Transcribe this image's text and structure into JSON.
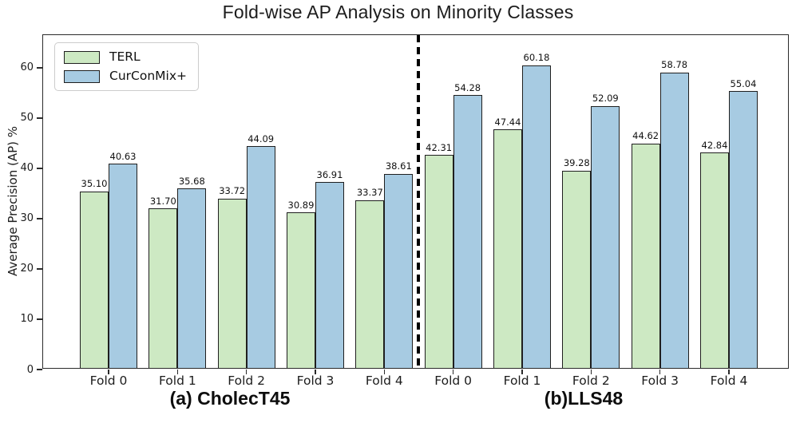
{
  "chart_data": {
    "type": "bar",
    "title": "Fold-wise AP Analysis on Minority Classes",
    "ylabel": "Average Precision (AP) %",
    "xlabel": "",
    "ylim": [
      0,
      66.5
    ],
    "yticks": [
      0,
      10,
      20,
      30,
      40,
      50,
      60
    ],
    "grid": false,
    "legend_position": "upper-left",
    "categories": [
      "Fold 0",
      "Fold 1",
      "Fold 2",
      "Fold 3",
      "Fold 4",
      "Fold 0",
      "Fold 1",
      "Fold 2",
      "Fold 3",
      "Fold 4"
    ],
    "series": [
      {
        "name": "TERL",
        "color": "#cde9c3",
        "edge_color": "#1f1f1f",
        "values": [
          "35.10",
          "31.70",
          "33.72",
          "30.89",
          "33.37",
          "42.31",
          "47.44",
          "39.28",
          "44.62",
          "42.84"
        ]
      },
      {
        "name": "CurConMix+",
        "color": "#a7cbe2",
        "edge_color": "#1f1f1f",
        "values": [
          "40.63",
          "35.68",
          "44.09",
          "36.91",
          "38.61",
          "54.28",
          "60.18",
          "52.09",
          "58.78",
          "55.04"
        ]
      }
    ],
    "divider_after_category_index": 4,
    "divider_style": "black-dashed-vertical",
    "subplots": [
      {
        "caption": "(a) CholecT45",
        "category_indices": [
          0,
          1,
          2,
          3,
          4
        ]
      },
      {
        "caption": "(b)LLS48",
        "category_indices": [
          5,
          6,
          7,
          8,
          9
        ]
      }
    ]
  },
  "legend": {
    "items": [
      {
        "label": "TERL",
        "color": "#cde9c3"
      },
      {
        "label": "CurConMix+",
        "color": "#a7cbe2"
      }
    ]
  },
  "captions": {
    "left": "(a) CholecT45",
    "right": "(b)LLS48"
  }
}
